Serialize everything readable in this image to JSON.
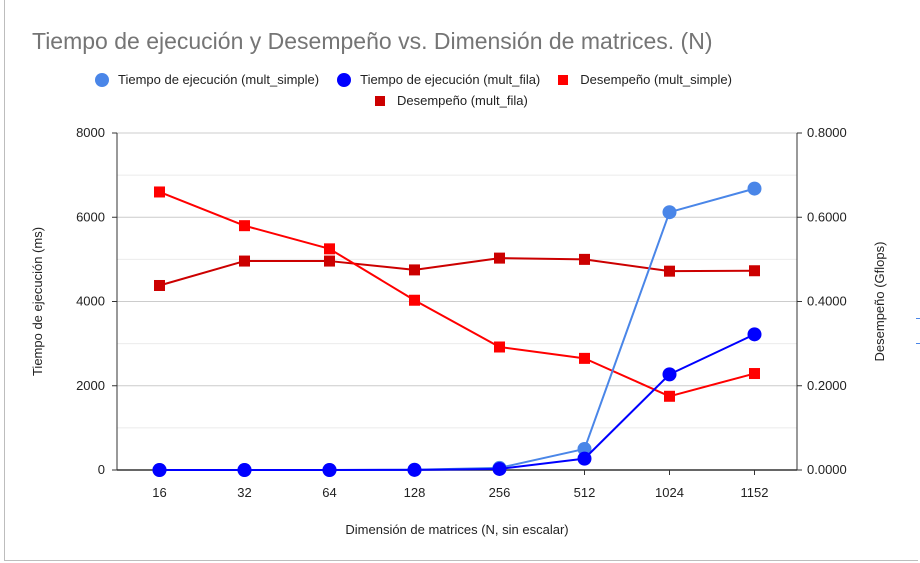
{
  "chart_data": {
    "type": "line",
    "title": "Tiempo de ejecución y Desempeño vs. Dimensión de matrices. (N)",
    "xlabel": "Dimensión de matrices (N, sin escalar)",
    "ylabel_left": "Tiempo de ejecución (ms)",
    "ylabel_right": "Desempeño (Gflops)",
    "categories": [
      "16",
      "32",
      "64",
      "128",
      "256",
      "512",
      "1024",
      "1152"
    ],
    "y_left_ticks": [
      "0",
      "2000",
      "4000",
      "6000",
      "8000"
    ],
    "y_right_ticks": [
      "0.0000",
      "0.2000",
      "0.4000",
      "0.6000",
      "0.8000"
    ],
    "ylim_left": [
      0,
      8000
    ],
    "ylim_right": [
      0,
      0.8
    ],
    "grid": true,
    "legend_position": "top",
    "series": [
      {
        "name": "Tiempo de ejecución (mult_simple)",
        "axis": "left",
        "marker": "circle",
        "color": "#4a86e8",
        "values": [
          0,
          0,
          0,
          5,
          50,
          500,
          6120,
          6680
        ]
      },
      {
        "name": "Tiempo de ejecución (mult_fila)",
        "axis": "left",
        "marker": "circle",
        "color": "#0000ff",
        "values": [
          0,
          0,
          0,
          4,
          25,
          270,
          2270,
          3220
        ]
      },
      {
        "name": "Desempeño (mult_simple)",
        "axis": "right",
        "marker": "square",
        "color": "#ff0000",
        "values": [
          0.66,
          0.58,
          0.525,
          0.403,
          0.292,
          0.265,
          0.175,
          0.229
        ]
      },
      {
        "name": "Desempeño (mult_fila)",
        "axis": "right",
        "marker": "square",
        "color": "#cc0000",
        "values": [
          0.438,
          0.496,
          0.496,
          0.475,
          0.503,
          0.5,
          0.472,
          0.473
        ]
      }
    ]
  }
}
